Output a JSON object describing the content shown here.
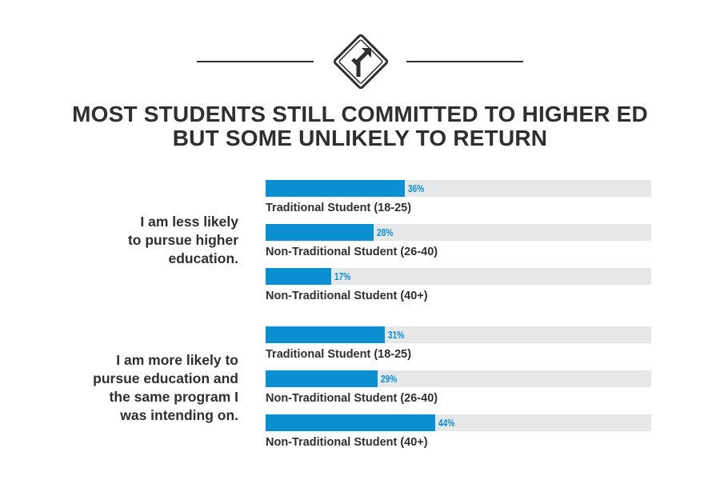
{
  "header": {
    "icon": "road-fork-sign-icon",
    "title_lines": [
      "MOST STUDENTS STILL COMMITTED TO HIGHER ED",
      "BUT SOME UNLIKELY TO RETURN"
    ]
  },
  "colors": {
    "bar": "#0a8fd2",
    "track": "#e6e7e8",
    "text": "#2f2f31"
  },
  "chart_data": {
    "type": "bar",
    "orientation": "horizontal",
    "title": "MOST STUDENTS STILL COMMITTED TO HIGHER ED BUT SOME UNLIKELY TO RETURN",
    "xlim": [
      0,
      100
    ],
    "unit": "%",
    "groups": [
      {
        "label_lines": [
          "I am less likely",
          "to pursue higher",
          "education."
        ],
        "categories": [
          "Traditional Student (18-25)",
          "Non-Traditional Student (26-40)",
          "Non-Traditional Student (40+)"
        ],
        "values": [
          36,
          28,
          17
        ],
        "value_labels": [
          "36%",
          "28%",
          "17%"
        ]
      },
      {
        "label_lines": [
          "I am more likely to",
          "pursue education and",
          "the same program I",
          "was intending on."
        ],
        "categories": [
          "Traditional Student (18-25)",
          "Non-Traditional Student (26-40)",
          "Non-Traditional Student (40+)"
        ],
        "values": [
          31,
          29,
          44
        ],
        "value_labels": [
          "31%",
          "29%",
          "44%"
        ]
      }
    ]
  }
}
